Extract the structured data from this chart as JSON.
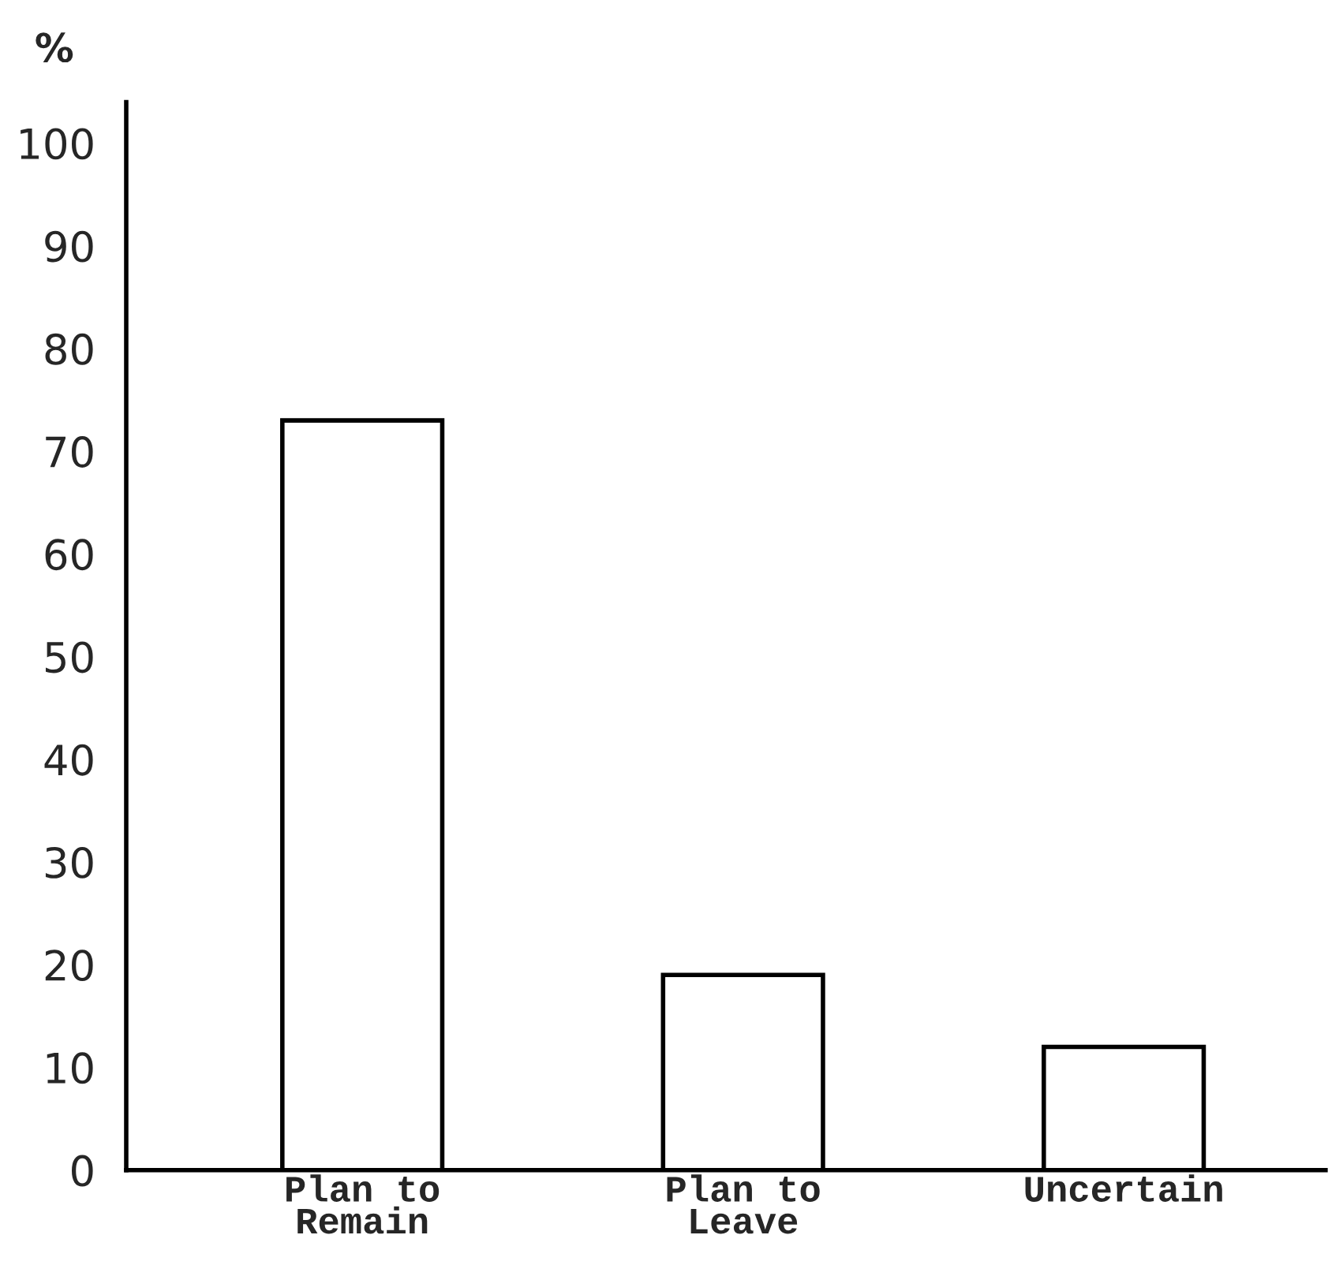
{
  "chart_data": {
    "type": "bar",
    "ylabel": "%",
    "categories": [
      "Plan to\nRemain",
      "Plan to\nLeave",
      "Uncertain"
    ],
    "values": [
      73,
      19,
      12
    ],
    "color": "#ffffff",
    "ylim": [
      0,
      104
    ],
    "yticks": [
      0,
      10,
      20,
      30,
      40,
      50,
      60,
      70,
      80,
      90,
      100
    ],
    "grid": false,
    "legend": false
  }
}
